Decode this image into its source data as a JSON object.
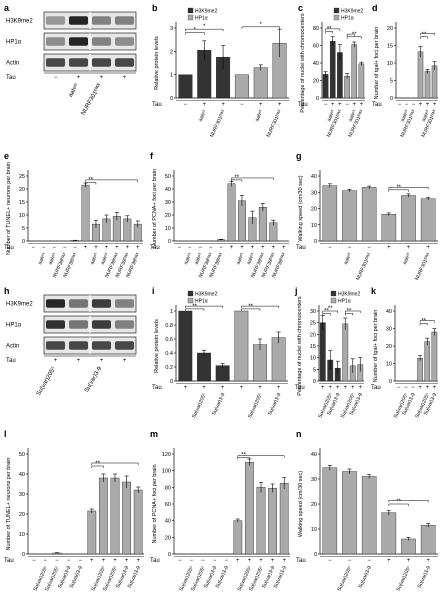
{
  "chart_data": [
    {
      "id": "a",
      "type": "western-blot",
      "panel_label": "a",
      "rows": [
        "H3K9me2",
        "HP1α",
        "Actin"
      ],
      "condition_row": "Tau",
      "condition_values": [
        "−",
        "+",
        "+",
        "+"
      ],
      "lane_labels": [
        "",
        "aahᵉ³",
        "NURF301ᴱᴹᴶᴵ",
        ""
      ],
      "band_intensities": [
        [
          0.45,
          0.95,
          0.55,
          0.55
        ],
        [
          0.5,
          0.95,
          0.55,
          0.5
        ],
        [
          0.8,
          0.8,
          0.8,
          0.8
        ]
      ]
    },
    {
      "id": "b",
      "type": "bar",
      "panel_label": "b",
      "ylabel": "Relative protein levels",
      "ylim": [
        0,
        3
      ],
      "yticks": [
        0,
        1,
        2,
        3
      ],
      "legend": [
        "H3K9me2",
        "HP1α"
      ],
      "series_colors": [
        "#333333",
        "#aaaaaa"
      ],
      "categories": [
        "",
        "aahᵉ³",
        "NURF301ᴱᴹᴶᴵ",
        "",
        "aahᵉ³",
        "NURF301ᴱᴹᴶᴵ"
      ],
      "tau": [
        "−",
        "+",
        "+",
        "−",
        "+",
        "+"
      ],
      "values": [
        1,
        2.05,
        1.75,
        1,
        1.3,
        2.35
      ],
      "errors": [
        0,
        0.4,
        0.5,
        0,
        0.12,
        0.6
      ],
      "colors": [
        "#333333",
        "#333333",
        "#333333",
        "#aaaaaa",
        "#aaaaaa",
        "#aaaaaa"
      ],
      "sig": [
        {
          "from": 0,
          "to": 1,
          "level": 2.8,
          "label": "*"
        },
        {
          "from": 0,
          "to": 2,
          "level": 2.95,
          "label": "*"
        },
        {
          "from": 3,
          "to": 5,
          "level": 3.05,
          "label": "*"
        }
      ]
    },
    {
      "id": "c",
      "type": "bar",
      "panel_label": "c",
      "ylabel": "Percentage of nuclei with chromocenters",
      "ylim": [
        0,
        80
      ],
      "yticks": [
        0,
        20,
        40,
        60,
        80
      ],
      "legend": [
        "H3K9me2",
        "HP1α"
      ],
      "series_colors": [
        "#333333",
        "#aaaaaa"
      ],
      "categories": [
        "",
        "aahᵉ³",
        "NURF301ᴱᴹᴶᴵ",
        "",
        "aahᵉ³",
        "NURF301ᴱᴹᴶᴵ"
      ],
      "tau": [
        "−",
        "+",
        "+",
        "−",
        "+",
        "+"
      ],
      "values": [
        27,
        65,
        52,
        25,
        61,
        39
      ],
      "errors": [
        3,
        5,
        9,
        3,
        3,
        2
      ],
      "colors": [
        "#333333",
        "#333333",
        "#333333",
        "#aaaaaa",
        "#aaaaaa",
        "#aaaaaa"
      ],
      "sig": [
        {
          "from": 0,
          "to": 1,
          "level": 76,
          "label": "**"
        },
        {
          "from": 0,
          "to": 2,
          "level": 79,
          "label": ""
        },
        {
          "from": 3,
          "to": 4,
          "level": 73,
          "label": ""
        },
        {
          "from": 3,
          "to": 5,
          "level": 70,
          "label": "**"
        }
      ]
    },
    {
      "id": "d",
      "type": "bar",
      "panel_label": "d",
      "ylabel": "Number of tgal+ foci per brain",
      "ylim": [
        0,
        20
      ],
      "yticks": [
        0,
        5,
        10,
        15,
        20
      ],
      "categories": [
        "",
        "aahᵉ³",
        "NURF301ᴱᴹᴶᴵ",
        "",
        "aahᵉ³",
        "NURF301ᴱᴹᴶᴵ"
      ],
      "tau": [
        "−",
        "−",
        "−",
        "+",
        "+",
        "+"
      ],
      "values": [
        0,
        0,
        0,
        13.2,
        7.6,
        9.2
      ],
      "errors": [
        0,
        0,
        0,
        1.5,
        0.6,
        1.2
      ],
      "colors": [
        "#aaaaaa",
        "#aaaaaa",
        "#aaaaaa",
        "#aaaaaa",
        "#aaaaaa",
        "#aaaaaa"
      ],
      "sig": [
        {
          "from": 3,
          "to": 4,
          "level": 17.5,
          "label": "**"
        },
        {
          "from": 3,
          "to": 5,
          "level": 18.5,
          "label": ""
        }
      ]
    },
    {
      "id": "e",
      "type": "bar",
      "panel_label": "e",
      "ylabel": "Number of TUNEL+ neurons per brain",
      "ylim": [
        0,
        25
      ],
      "yticks": [
        0,
        5,
        10,
        15,
        20,
        25
      ],
      "categories": [
        "",
        "aahᵉ³",
        "aahᵉ³",
        "NURF38ᴱᴹᴶᴵ",
        "NURF38ᴱᴹᴶᴵ",
        "",
        "aahᵉ³",
        "aahᵉ³",
        "NURF38ᴱᴹᴶᴵ",
        "NURF38ᴱᴹᴶᴵ",
        "NURF38ᴱᴹᴶᴵ"
      ],
      "tau": [
        "−",
        "−",
        "−",
        "−",
        "−",
        "+",
        "+",
        "+",
        "+",
        "+",
        "+"
      ],
      "values": [
        0,
        0,
        0,
        0,
        0.2,
        21.5,
        6.5,
        8.5,
        9.5,
        8.5,
        6.5
      ],
      "errors": [
        0,
        0,
        0,
        0,
        0.1,
        0.8,
        1.5,
        1.5,
        1.5,
        1.2,
        1.2
      ],
      "colors": [
        "#aaaaaa",
        "#aaaaaa",
        "#aaaaaa",
        "#aaaaaa",
        "#aaaaaa",
        "#aaaaaa",
        "#aaaaaa",
        "#aaaaaa",
        "#aaaaaa",
        "#aaaaaa",
        "#aaaaaa"
      ],
      "sig": [
        {
          "from": 5,
          "to": 6,
          "level": 22.5,
          "label": "**"
        },
        {
          "from": 5,
          "to": 10,
          "level": 23.5,
          "label": ""
        }
      ]
    },
    {
      "id": "f",
      "type": "bar",
      "panel_label": "f",
      "ylabel": "Number of PCNA+ foci per brain",
      "ylim": [
        0,
        50
      ],
      "yticks": [
        0,
        10,
        20,
        30,
        40,
        50
      ],
      "categories": [
        "",
        "aahᵉ³",
        "aahᵉ³",
        "NURF38ᴱᴹᴶᴵ",
        "NURF38ᴱᴹᴶᴵ",
        "",
        "aahᵉ³",
        "aahᵉ³",
        "NURF38ᴱᴹᴶᴵ",
        "NURF38ᴱᴹᴶᴵ",
        "NURF38ᴱᴹᴶᴵ"
      ],
      "tau": [
        "−",
        "−",
        "−",
        "−",
        "−",
        "+",
        "+",
        "+",
        "+",
        "+",
        "+"
      ],
      "values": [
        0,
        0,
        0,
        0,
        1,
        44,
        31,
        18,
        26,
        14,
        0
      ],
      "errors": [
        0,
        0,
        0,
        0,
        0.3,
        2,
        4,
        5,
        3,
        2,
        0
      ],
      "colors": [
        "#aaaaaa",
        "#aaaaaa",
        "#aaaaaa",
        "#aaaaaa",
        "#aaaaaa",
        "#aaaaaa",
        "#aaaaaa",
        "#aaaaaa",
        "#aaaaaa",
        "#aaaaaa",
        "#aaaaaa"
      ],
      "sig": [
        {
          "from": 5,
          "to": 6,
          "level": 47,
          "label": "**"
        },
        {
          "from": 5,
          "to": 9,
          "level": 48.5,
          "label": ""
        }
      ]
    },
    {
      "id": "g",
      "type": "bar",
      "panel_label": "g",
      "ylabel": "Walking speed (cm/30 sec)",
      "ylim": [
        0,
        40
      ],
      "yticks": [
        0,
        10,
        20,
        30,
        40
      ],
      "categories": [
        "",
        "aahᵉ³",
        "NURF301ᴱᴹᴶᴵ",
        "",
        "aahᵉ³",
        "NURF301ᴱᴹᴶᴵ"
      ],
      "tau": [
        "−",
        "−",
        "−",
        "+",
        "+",
        "+"
      ],
      "values": [
        34,
        31,
        33,
        16.5,
        28,
        26
      ],
      "errors": [
        1.2,
        0.8,
        0.8,
        0.8,
        1,
        0.8
      ],
      "colors": [
        "#aaaaaa",
        "#aaaaaa",
        "#aaaaaa",
        "#aaaaaa",
        "#aaaaaa",
        "#aaaaaa"
      ],
      "sig": [
        {
          "from": 3,
          "to": 4,
          "level": 31.5,
          "label": "**"
        },
        {
          "from": 3,
          "to": 5,
          "level": 33,
          "label": ""
        }
      ]
    },
    {
      "id": "h",
      "type": "western-blot",
      "panel_label": "h",
      "rows": [
        "H3K9me2",
        "HP1α",
        "Actin"
      ],
      "condition_row": "Tau",
      "condition_values": [
        "+",
        "+",
        "+",
        "+"
      ],
      "lane_labels": [
        "Su(var)205⁵",
        "",
        "Su(var)3-9",
        ""
      ],
      "band_intensities": [
        [
          0.95,
          0.6,
          0.85,
          0.55
        ],
        [
          0.9,
          0.6,
          0.85,
          0.55
        ],
        [
          0.8,
          0.8,
          0.8,
          0.8
        ]
      ]
    },
    {
      "id": "i",
      "type": "bar",
      "panel_label": "i",
      "ylabel": "Relative protein levels",
      "ylim": [
        0,
        1
      ],
      "yticks": [
        0,
        0.2,
        0.4,
        0.6,
        0.8,
        1.0
      ],
      "legend": [
        "H3K9me2",
        "HP1α"
      ],
      "series_colors": [
        "#333333",
        "#aaaaaa"
      ],
      "categories": [
        "",
        "Su(var)205⁵",
        "Su(var)3-9",
        "",
        "Su(var)205⁵",
        "Su(var)3-9"
      ],
      "tau": [
        "+",
        "+",
        "+",
        "+",
        "+",
        "+"
      ],
      "values": [
        1,
        0.4,
        0.22,
        1,
        0.52,
        0.62
      ],
      "errors": [
        0,
        0.04,
        0.03,
        0,
        0.08,
        0.08
      ],
      "colors": [
        "#333333",
        "#333333",
        "#333333",
        "#aaaaaa",
        "#aaaaaa",
        "#aaaaaa"
      ],
      "sig": [
        {
          "from": 0,
          "to": 1,
          "level": 1.03,
          "label": "**"
        },
        {
          "from": 0,
          "to": 2,
          "level": 1.07,
          "label": ""
        },
        {
          "from": 3,
          "to": 4,
          "level": 1.03,
          "label": "**"
        },
        {
          "from": 3,
          "to": 5,
          "level": 1.07,
          "label": ""
        }
      ]
    },
    {
      "id": "j",
      "type": "bar",
      "panel_label": "j",
      "ylabel": "Percentage of nuclei with chromocenters",
      "ylim": [
        0,
        30
      ],
      "yticks": [
        0,
        5,
        10,
        15,
        20,
        25,
        30
      ],
      "legend": [
        "H3K9me2",
        "HP1α"
      ],
      "series_colors": [
        "#333333",
        "#aaaaaa"
      ],
      "categories": [
        "",
        "Su(var)205⁵",
        "Su(var)3-9",
        "",
        "Su(var)205⁵",
        "Su(var)3-9"
      ],
      "tau": [
        "+",
        "+",
        "+",
        "+",
        "+",
        "+"
      ],
      "values": [
        25,
        9,
        5.5,
        24.5,
        6.5,
        7
      ],
      "errors": [
        3,
        4,
        3,
        2.5,
        3,
        3
      ],
      "colors": [
        "#333333",
        "#333333",
        "#333333",
        "#aaaaaa",
        "#aaaaaa",
        "#aaaaaa"
      ],
      "sig": [
        {
          "from": 0,
          "to": 1,
          "level": 29,
          "label": "**"
        },
        {
          "from": 0,
          "to": 2,
          "level": 30,
          "label": "**"
        },
        {
          "from": 3,
          "to": 4,
          "level": 29,
          "label": "**"
        },
        {
          "from": 3,
          "to": 5,
          "level": 30,
          "label": ""
        }
      ]
    },
    {
      "id": "k",
      "type": "bar",
      "panel_label": "k",
      "ylabel": "Number of tgal+ foci per brain",
      "ylim": [
        0,
        40
      ],
      "yticks": [
        0,
        10,
        20,
        30,
        40
      ],
      "categories": [
        "",
        "Su(var)205⁵",
        "Su(var)3-9",
        "",
        "Su(var)205⁵",
        "Su(var)3-9"
      ],
      "tau": [
        "−",
        "−",
        "−",
        "+",
        "+",
        "+"
      ],
      "values": [
        0,
        0,
        0,
        13,
        22.5,
        28
      ],
      "errors": [
        0,
        0,
        0,
        1.5,
        2,
        2
      ],
      "colors": [
        "#aaaaaa",
        "#aaaaaa",
        "#aaaaaa",
        "#aaaaaa",
        "#aaaaaa",
        "#aaaaaa"
      ],
      "sig": [
        {
          "from": 3,
          "to": 4,
          "level": 33,
          "label": "**"
        },
        {
          "from": 3,
          "to": 5,
          "level": 34.5,
          "label": ""
        }
      ]
    },
    {
      "id": "l",
      "type": "bar",
      "panel_label": "l",
      "ylabel": "Number of TUNEL+ neurons per brain",
      "ylim": [
        0,
        50
      ],
      "yticks": [
        0,
        10,
        20,
        30,
        40,
        50
      ],
      "categories": [
        "",
        "Su(var)205⁵",
        "Su(var)205⁵",
        "Su(var)3-9",
        "Su(var)3-9",
        "",
        "Su(var)205⁵",
        "Su(var)205⁵",
        "Su(var)3-9",
        "Su(var)3-9"
      ],
      "tau": [
        "−",
        "−",
        "−",
        "−",
        "−",
        "+",
        "+",
        "+",
        "+",
        "+"
      ],
      "values": [
        0,
        0,
        0.5,
        0,
        0,
        21.5,
        38,
        38,
        36,
        32
      ],
      "errors": [
        0,
        0,
        0.2,
        0,
        0,
        1,
        2,
        2,
        3,
        1.5
      ],
      "colors": [
        "#aaaaaa",
        "#aaaaaa",
        "#aaaaaa",
        "#aaaaaa",
        "#aaaaaa",
        "#aaaaaa",
        "#aaaaaa",
        "#aaaaaa",
        "#aaaaaa",
        "#aaaaaa"
      ],
      "sig": [
        {
          "from": 5,
          "to": 6,
          "level": 44,
          "label": "**"
        },
        {
          "from": 5,
          "to": 9,
          "level": 45.5,
          "label": ""
        }
      ]
    },
    {
      "id": "m",
      "type": "bar",
      "panel_label": "m",
      "ylabel": "Number of PCNA+ foci per brain",
      "ylim": [
        0,
        120
      ],
      "yticks": [
        0,
        20,
        40,
        60,
        80,
        100,
        120
      ],
      "categories": [
        "",
        "Su(var)205⁵",
        "Su(var)205⁵",
        "Su(var)3-9",
        "Su(var)3-9",
        "",
        "Su(var)205⁵",
        "Su(var)205⁵",
        "Su(var)3-9",
        "Su(var)3-9"
      ],
      "tau": [
        "−",
        "−",
        "−",
        "−",
        "−",
        "+",
        "+",
        "+",
        "+",
        "+"
      ],
      "values": [
        0,
        0,
        0,
        0,
        0,
        40,
        110,
        80,
        79,
        85
      ],
      "errors": [
        0,
        0,
        0,
        0,
        0,
        2,
        4,
        6,
        5,
        7
      ],
      "colors": [
        "#aaaaaa",
        "#aaaaaa",
        "#aaaaaa",
        "#aaaaaa",
        "#aaaaaa",
        "#aaaaaa",
        "#aaaaaa",
        "#aaaaaa",
        "#aaaaaa",
        "#aaaaaa"
      ],
      "sig": [
        {
          "from": 5,
          "to": 6,
          "level": 116,
          "label": "**"
        },
        {
          "from": 5,
          "to": 9,
          "level": 118,
          "label": ""
        }
      ]
    },
    {
      "id": "n",
      "type": "bar",
      "panel_label": "n",
      "ylabel": "Walking speed (cm/30 sec)",
      "ylim": [
        0,
        40
      ],
      "yticks": [
        0,
        10,
        20,
        30,
        40
      ],
      "categories": [
        "",
        "Su(var)205⁵",
        "Su(var)3-9",
        "",
        "Su(var)205⁵",
        "Su(var)3-9"
      ],
      "tau": [
        "−",
        "−",
        "−",
        "+",
        "+",
        "+"
      ],
      "values": [
        34.5,
        33,
        31,
        16.5,
        6,
        11.5
      ],
      "errors": [
        1,
        1,
        0.8,
        1,
        0.6,
        0.8
      ],
      "colors": [
        "#aaaaaa",
        "#aaaaaa",
        "#aaaaaa",
        "#aaaaaa",
        "#aaaaaa",
        "#aaaaaa"
      ],
      "sig": [
        {
          "from": 3,
          "to": 4,
          "level": 20,
          "label": "**"
        },
        {
          "from": 3,
          "to": 5,
          "level": 21.5,
          "label": ""
        }
      ]
    }
  ]
}
